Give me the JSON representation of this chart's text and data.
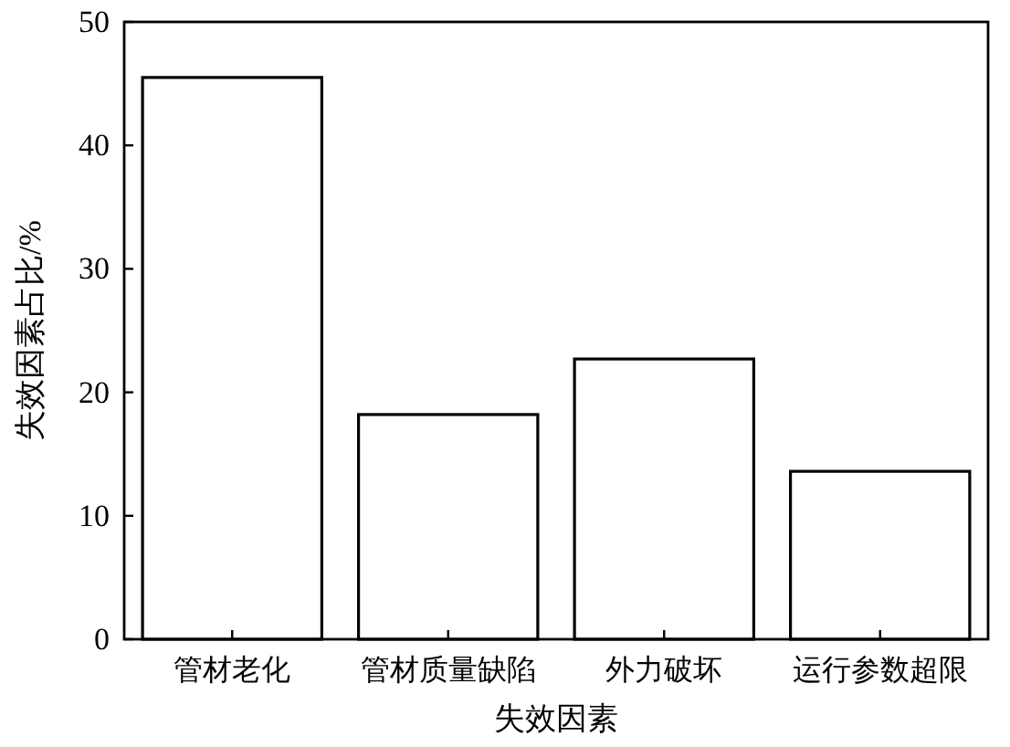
{
  "chart_data": {
    "type": "bar",
    "categories": [
      "管材老化",
      "管材质量缺陷",
      "外力破坏",
      "运行参数超限"
    ],
    "values": [
      45.5,
      18.2,
      22.7,
      13.6
    ],
    "color": "#ffffff",
    "xlabel": "失效因素",
    "ylabel": "失效因素占比/%",
    "ylim": [
      0,
      50
    ],
    "yticks": [
      0,
      10,
      20,
      30,
      40,
      50
    ],
    "grid": false
  }
}
